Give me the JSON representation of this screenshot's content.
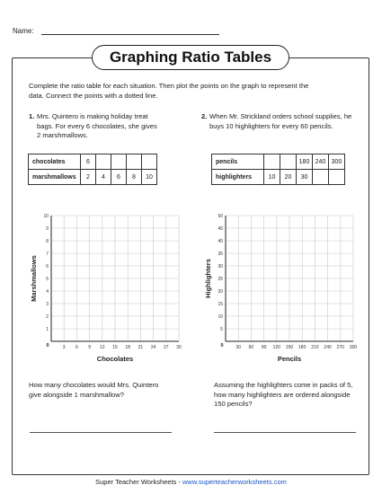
{
  "header": {
    "name_label": "Name:"
  },
  "title": "Graphing Ratio Tables",
  "instructions": "Complete the ratio table for each situation. Then plot the points on the graph to represent the data. Connect the points with a dotted line.",
  "problems": [
    {
      "number": "1.",
      "text": "Mrs. Quintero is making holiday treat bags. For every 6 chocolates, she gives 2 marshmallows.",
      "table": {
        "rows": [
          {
            "label": "chocolates",
            "cells": [
              "6",
              "",
              "",
              "",
              ""
            ]
          },
          {
            "label": "marshmallows",
            "cells": [
              "2",
              "4",
              "6",
              "8",
              "10"
            ]
          }
        ]
      },
      "question": "How many chocolates would Mrs. Quintero give alongside 1 marshmallow?"
    },
    {
      "number": "2.",
      "text": "When Mr. Strickland orders school supplies, he buys 10 highlighters for every 60 pencils.",
      "table": {
        "rows": [
          {
            "label": "pencils",
            "cells": [
              "",
              "",
              "180",
              "240",
              "300"
            ]
          },
          {
            "label": "highlighters",
            "cells": [
              "10",
              "20",
              "30",
              "",
              ""
            ]
          }
        ]
      },
      "question": "Assuming the highlighters come in packs of 5, how many highlighters are ordered alongside 150 pencils?"
    }
  ],
  "chart_data": [
    {
      "type": "scatter",
      "xlabel": "Chocolates",
      "ylabel": "Marshmallows",
      "xlim": [
        0,
        30
      ],
      "ylim": [
        0,
        10
      ],
      "x_ticks": [
        "3",
        "6",
        "9",
        "12",
        "15",
        "18",
        "21",
        "24",
        "27",
        "30"
      ],
      "y_ticks": [
        "1",
        "2",
        "3",
        "4",
        "5",
        "6",
        "7",
        "8",
        "9",
        "10"
      ],
      "origin_label": "0",
      "grid": true,
      "points": []
    },
    {
      "type": "scatter",
      "xlabel": "Pencils",
      "ylabel": "Highlighters",
      "xlim": [
        0,
        300
      ],
      "ylim": [
        0,
        50
      ],
      "x_ticks": [
        "30",
        "60",
        "90",
        "120",
        "150",
        "180",
        "210",
        "240",
        "270",
        "300"
      ],
      "y_ticks": [
        "5",
        "10",
        "15",
        "20",
        "25",
        "30",
        "35",
        "40",
        "45",
        "50"
      ],
      "origin_label": "0",
      "grid": true,
      "points": []
    }
  ],
  "footer": {
    "brand": "Super Teacher Worksheets",
    "separator": " - ",
    "url": "www.superteacherworksheets.com"
  }
}
